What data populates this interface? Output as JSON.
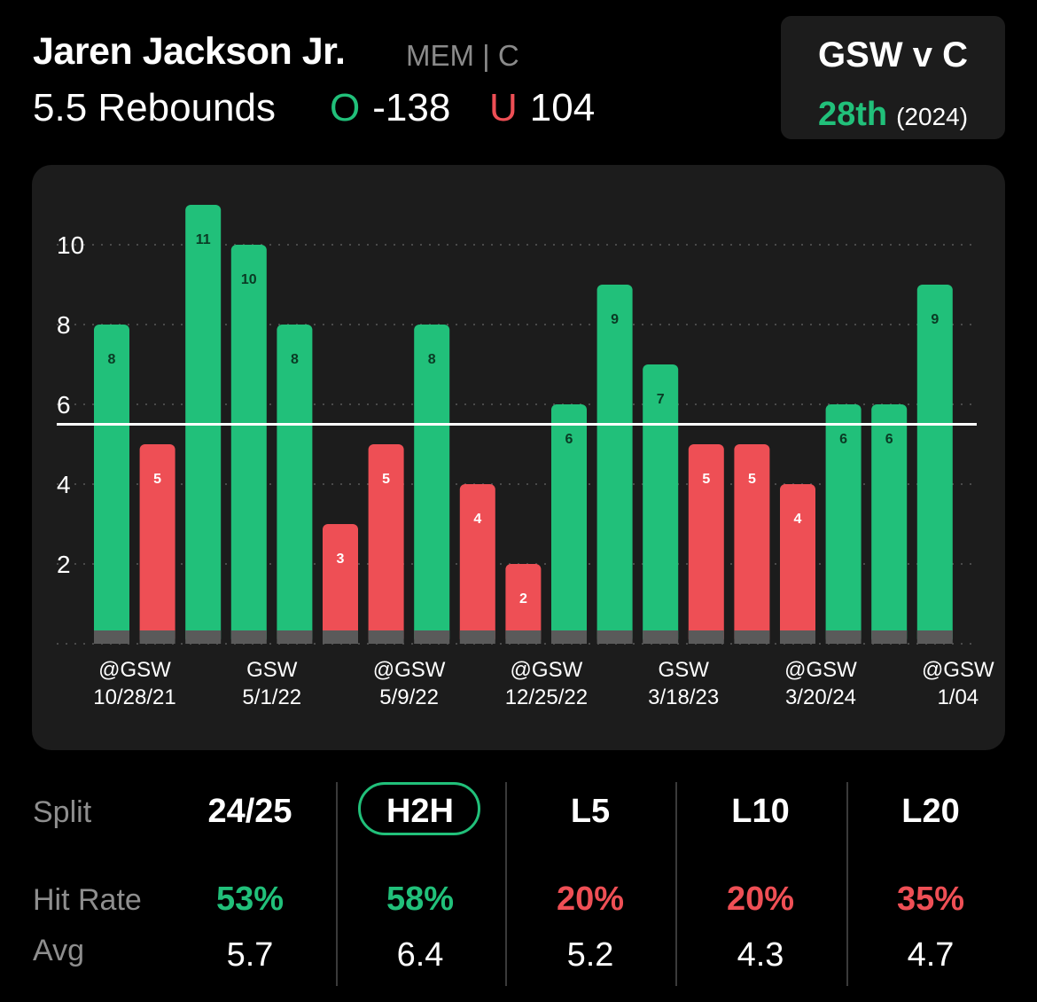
{
  "header": {
    "player_name": "Jaren Jackson Jr.",
    "meta": "MEM | C",
    "prop": "5.5 Rebounds",
    "over_glyph": "O",
    "over_odds": "-138",
    "under_glyph": "U",
    "under_odds": "104"
  },
  "matchup": {
    "title": "GSW v C",
    "rank": "28th",
    "year": "(2024)"
  },
  "colors": {
    "over": "#21c07a",
    "under": "#ee4f55",
    "card": "#1c1c1c",
    "baseline": "#5a5a5a"
  },
  "chart_data": {
    "type": "bar",
    "line": 5.5,
    "ylim": [
      0,
      12
    ],
    "y_ticks": [
      2,
      4,
      6,
      8,
      10
    ],
    "values": [
      8,
      5,
      11,
      10,
      8,
      3,
      5,
      8,
      4,
      2,
      6,
      9,
      7,
      5,
      5,
      4,
      6,
      6,
      9
    ],
    "x_labels": [
      {
        "index": 0,
        "team": "@GSW",
        "date": "10/28/21"
      },
      {
        "index": 3,
        "team": "GSW",
        "date": "5/1/22"
      },
      {
        "index": 6,
        "team": "@GSW",
        "date": "5/9/22"
      },
      {
        "index": 9,
        "team": "@GSW",
        "date": "12/25/22"
      },
      {
        "index": 12,
        "team": "GSW",
        "date": "3/18/23"
      },
      {
        "index": 15,
        "team": "@GSW",
        "date": "3/20/24"
      },
      {
        "index": 18,
        "team": "@GSW",
        "date": "1/04"
      }
    ],
    "grid": true
  },
  "stats": {
    "labels": {
      "split": "Split",
      "hit_rate": "Hit Rate",
      "avg": "Avg"
    },
    "selected": "H2H",
    "columns": [
      {
        "split": "24/25",
        "hit_rate": "53%",
        "hit_color": "#21c07a",
        "avg": "5.7"
      },
      {
        "split": "H2H",
        "hit_rate": "58%",
        "hit_color": "#21c07a",
        "avg": "6.4"
      },
      {
        "split": "L5",
        "hit_rate": "20%",
        "hit_color": "#ee4f55",
        "avg": "5.2"
      },
      {
        "split": "L10",
        "hit_rate": "20%",
        "hit_color": "#ee4f55",
        "avg": "4.3"
      },
      {
        "split": "L20",
        "hit_rate": "35%",
        "hit_color": "#ee4f55",
        "avg": "4.7"
      }
    ]
  }
}
